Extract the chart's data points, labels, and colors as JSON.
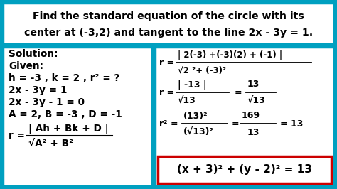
{
  "bg_color": "#00a0c0",
  "panel_bg": "#ffffff",
  "red_box_color": "#cc0000",
  "border_color": "#00a0c0",
  "text_color": "#000000",
  "title_text1": "Find the standard equation of the circle with its",
  "title_text2": "center at (-3,2) and tangent to the line 2x - 3y = 1.",
  "left_lines": [
    "Solution:",
    "Given:",
    "h = -3 , k = 2 , r² = ?",
    "2x - 3y = 1",
    "2x - 3y - 1 = 0",
    "A = 2, B = -3 , D = -1"
  ]
}
